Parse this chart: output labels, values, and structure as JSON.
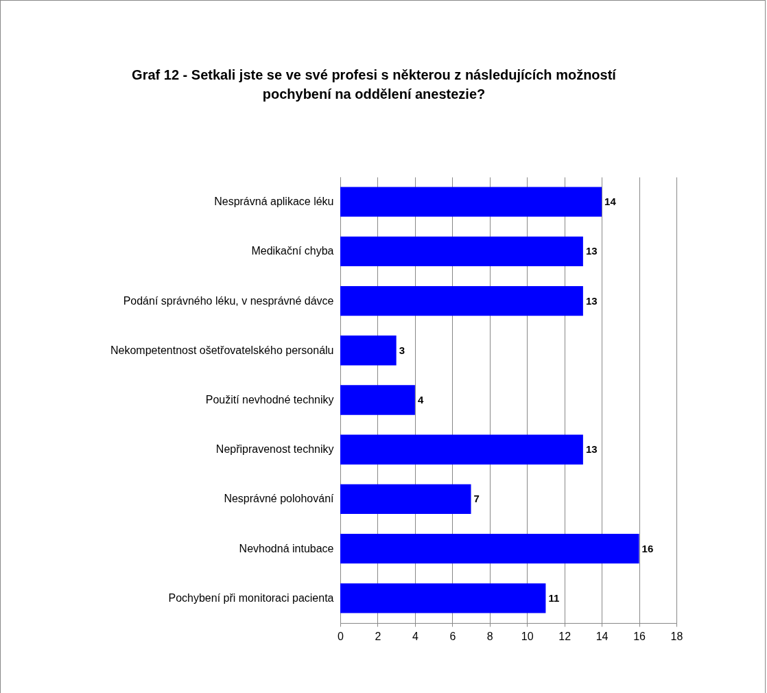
{
  "chart_data": {
    "type": "bar",
    "orientation": "horizontal",
    "title": "Graf 12 - Setkali jste se ve své profesi s některou z následujících možností pochybení na oddělení anestezie?",
    "categories": [
      "Nesprávná aplikace léku",
      "Medikační chyba",
      "Podání správného léku, v nesprávné dávce",
      "Nekompetentnost ošetřovatelského personálu",
      "Použití nevhodné techniky",
      "Nepřipravenost techniky",
      "Nesprávné polohování",
      "Nevhodná intubace",
      "Pochybení při monitoraci pacienta"
    ],
    "values": [
      14,
      13,
      13,
      3,
      4,
      13,
      7,
      16,
      11
    ],
    "color": "#0000ff",
    "xlim": [
      0,
      18
    ],
    "xticks": [
      0,
      2,
      4,
      6,
      8,
      10,
      12,
      14,
      16,
      18
    ],
    "grid": "x",
    "data_labels": true
  }
}
